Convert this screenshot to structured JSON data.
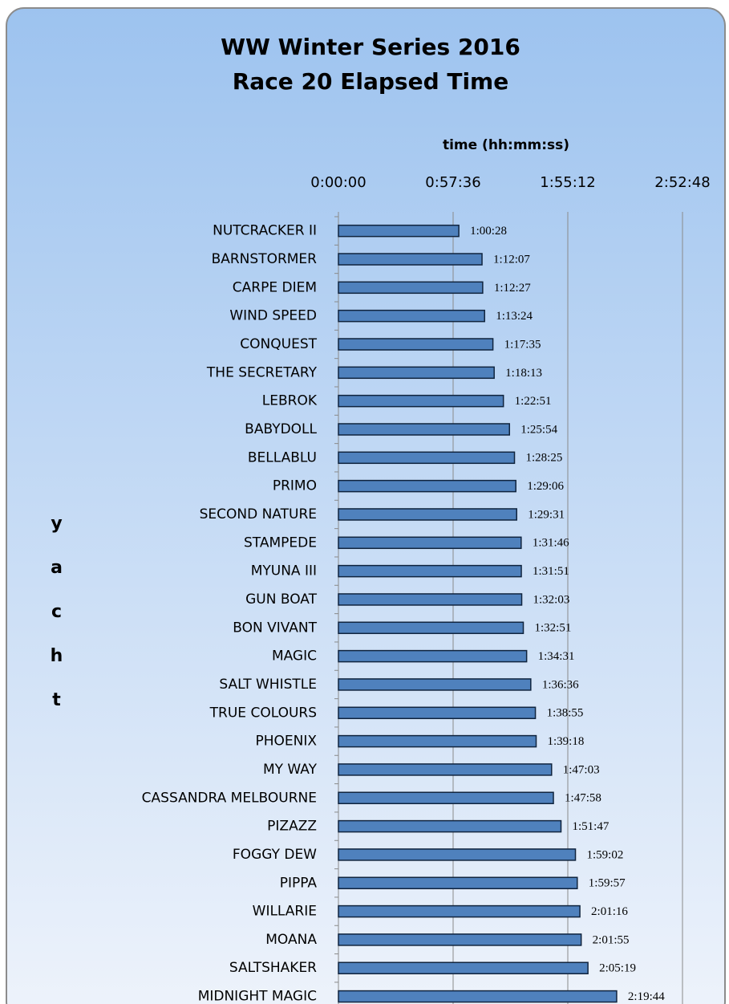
{
  "chart_data": {
    "type": "bar",
    "orientation": "horizontal",
    "title": "WW Winter Series 2016",
    "subtitle": "Race 20 Elapsed Time",
    "x_label": "time (hh:mm:ss)",
    "y_label": "yacht",
    "categories": [
      "NUTCRACKER II",
      "BARNSTORMER",
      "CARPE DIEM",
      "WIND SPEED",
      "CONQUEST",
      "THE SECRETARY",
      "LEBROK",
      "BABYDOLL",
      "BELLABLU",
      "PRIMO",
      "SECOND NATURE",
      "STAMPEDE",
      "MYUNA III",
      "GUN BOAT",
      "BON VIVANT",
      "MAGIC",
      "SALT WHISTLE",
      "TRUE COLOURS",
      "PHOENIX",
      "MY WAY",
      "CASSANDRA MELBOURNE",
      "PIZAZZ",
      "FOGGY DEW",
      "PIPPA",
      "WILLARIE",
      "MOANA",
      "SALTSHAKER",
      "MIDNIGHT MAGIC"
    ],
    "values": [
      3628,
      4327,
      4347,
      4404,
      4655,
      4693,
      4971,
      5154,
      5305,
      5346,
      5371,
      5506,
      5511,
      5523,
      5571,
      5671,
      5796,
      5935,
      5958,
      6423,
      6478,
      6707,
      7142,
      7197,
      7276,
      7315,
      7519,
      8384
    ],
    "value_labels": [
      "1:00:28",
      "1:12:07",
      "1:12:27",
      "1:13:24",
      "1:17:35",
      "1:18:13",
      "1:22:51",
      "1:25:54",
      "1:28:25",
      "1:29:06",
      "1:29:31",
      "1:31:46",
      "1:31:51",
      "1:32:03",
      "1:32:51",
      "1:34:31",
      "1:36:36",
      "1:38:55",
      "1:39:18",
      "1:47:03",
      "1:47:58",
      "1:51:47",
      "1:59:02",
      "1:59:57",
      "2:01:16",
      "2:01:55",
      "2:05:19",
      "2:19:44"
    ],
    "color": "#4f81bd",
    "xlim": [
      0,
      10368
    ],
    "xticks": [
      {
        "value": 0,
        "label": "0:00:00"
      },
      {
        "value": 3456,
        "label": "0:57:36"
      },
      {
        "value": 6912,
        "label": "1:55:12"
      },
      {
        "value": 10368,
        "label": "2:52:48"
      }
    ],
    "grid": true
  }
}
